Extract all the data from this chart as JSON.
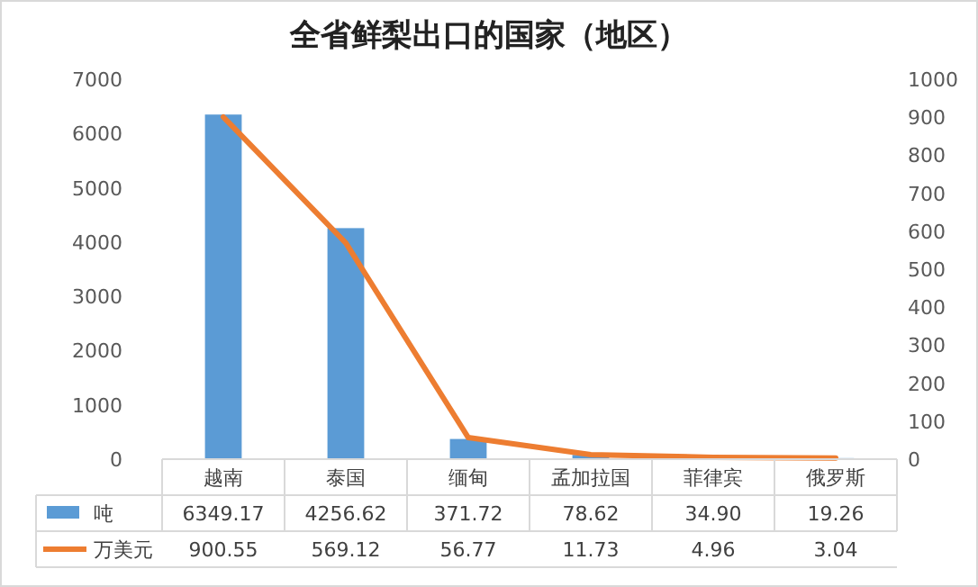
{
  "chart_data": {
    "type": "bar",
    "title": "全省鲜梨出口的国家（地区）",
    "categories": [
      "越南",
      "泰国",
      "缅甸",
      "孟加拉国",
      "菲律宾",
      "俄罗斯"
    ],
    "series": [
      {
        "name": "吨",
        "color": "#5b9bd5",
        "values": [
          6349.17,
          4256.62,
          371.72,
          78.62,
          34.9,
          19.26
        ],
        "value_labels": [
          "6349.17",
          "4256.62",
          "371.72",
          "78.62",
          "34.90",
          "19.26"
        ]
      },
      {
        "name": "万美元",
        "type": "line",
        "axis": "y2",
        "color": "#ed7d31",
        "values": [
          900.55,
          569.12,
          56.77,
          11.73,
          4.96,
          3.04
        ],
        "value_labels": [
          "900.55",
          "569.12",
          "56.77",
          "11.73",
          "4.96",
          "3.04"
        ]
      }
    ],
    "ylim": [
      0,
      7000
    ],
    "yticks": [
      0,
      1000,
      2000,
      3000,
      4000,
      5000,
      6000,
      7000
    ],
    "y2lim": [
      0,
      1000
    ],
    "y2ticks": [
      0,
      100,
      200,
      300,
      400,
      500,
      600,
      700,
      800,
      900,
      1000
    ],
    "legend": "bottom",
    "grid": false
  }
}
